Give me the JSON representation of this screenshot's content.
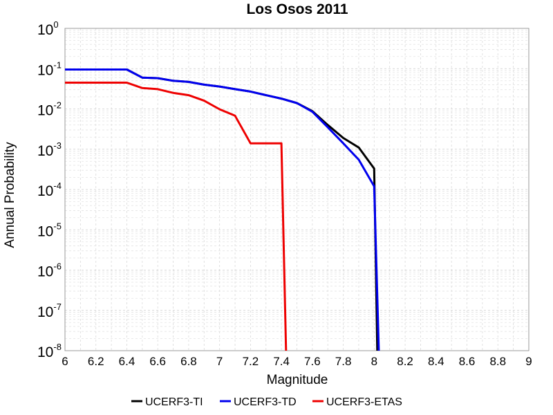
{
  "chart_data": {
    "type": "line",
    "title": "Los Osos 2011",
    "xlabel": "Magnitude",
    "ylabel": "Annual Probability",
    "xlim": [
      6,
      9
    ],
    "ylim": [
      1e-08,
      1
    ],
    "yscale": "log",
    "grid": true,
    "legend_position": "bottom",
    "xticks": [
      "6",
      "6.2",
      "6.4",
      "6.6",
      "6.8",
      "7",
      "7.2",
      "7.4",
      "7.6",
      "7.8",
      "8",
      "8.2",
      "8.4",
      "8.6",
      "8.8",
      "9"
    ],
    "yticks": [
      {
        "base": "10",
        "exp": "0"
      },
      {
        "base": "10",
        "exp": "-1"
      },
      {
        "base": "10",
        "exp": "-2"
      },
      {
        "base": "10",
        "exp": "-3"
      },
      {
        "base": "10",
        "exp": "-4"
      },
      {
        "base": "10",
        "exp": "-5"
      },
      {
        "base": "10",
        "exp": "-6"
      },
      {
        "base": "10",
        "exp": "-7"
      },
      {
        "base": "10",
        "exp": "-8"
      }
    ],
    "series": [
      {
        "name": "UCERF3-TI",
        "color": "#000000",
        "x": [
          6.0,
          6.1,
          6.2,
          6.3,
          6.4,
          6.5,
          6.6,
          6.7,
          6.8,
          6.9,
          7.0,
          7.1,
          7.2,
          7.3,
          7.4,
          7.5,
          7.6,
          7.7,
          7.8,
          7.9,
          8.0,
          8.02
        ],
        "y": [
          0.095,
          0.095,
          0.095,
          0.095,
          0.095,
          0.06,
          0.058,
          0.05,
          0.047,
          0.04,
          0.036,
          0.031,
          0.027,
          0.022,
          0.018,
          0.014,
          0.0088,
          0.004,
          0.0019,
          0.0011,
          0.00033,
          1e-08
        ]
      },
      {
        "name": "UCERF3-TD",
        "color": "#0000ee",
        "x": [
          6.0,
          6.1,
          6.2,
          6.3,
          6.4,
          6.5,
          6.6,
          6.7,
          6.8,
          6.9,
          7.0,
          7.1,
          7.2,
          7.3,
          7.4,
          7.5,
          7.6,
          7.7,
          7.8,
          7.9,
          8.0,
          8.03
        ],
        "y": [
          0.095,
          0.095,
          0.095,
          0.095,
          0.095,
          0.06,
          0.058,
          0.05,
          0.047,
          0.04,
          0.036,
          0.031,
          0.027,
          0.022,
          0.018,
          0.014,
          0.0085,
          0.0035,
          0.0014,
          0.00055,
          0.00012,
          1e-08
        ]
      },
      {
        "name": "UCERF3-ETAS",
        "color": "#ee0000",
        "x": [
          6.0,
          6.1,
          6.2,
          6.3,
          6.4,
          6.5,
          6.6,
          6.7,
          6.8,
          6.9,
          7.0,
          7.1,
          7.2,
          7.3,
          7.4,
          7.43
        ],
        "y": [
          0.045,
          0.045,
          0.045,
          0.045,
          0.045,
          0.033,
          0.031,
          0.025,
          0.022,
          0.016,
          0.0098,
          0.0068,
          0.0014,
          0.0014,
          0.0014,
          1e-08
        ]
      }
    ]
  }
}
